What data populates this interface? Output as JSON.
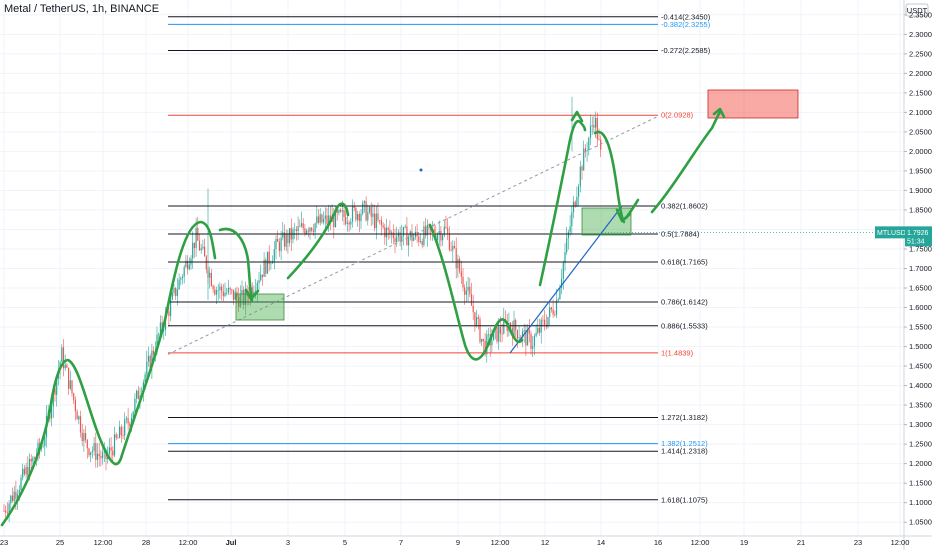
{
  "header": {
    "title": "Metal / TetherUS, 1h, BINANCE"
  },
  "axis": {
    "currency_label": "USDT"
  },
  "price_tag": {
    "symbol": "MTLUSDT",
    "price": "1.7926",
    "countdown": "51:34"
  },
  "chart_data": {
    "type": "candlestick",
    "symbol": "MTLUSDT",
    "interval": "1h",
    "exchange": "BINANCE",
    "ylim": [
      1.03,
      2.37
    ],
    "y_ticks": [
      "1.0500",
      "1.1000",
      "1.1500",
      "1.2000",
      "1.2500",
      "1.3000",
      "1.3500",
      "1.4000",
      "1.4500",
      "1.5000",
      "1.5500",
      "1.6000",
      "1.6500",
      "1.7000",
      "1.7500",
      "1.8000",
      "1.8500",
      "1.9000",
      "1.9500",
      "2.0000",
      "2.0500",
      "2.1000",
      "2.1500",
      "2.2000",
      "2.2500",
      "2.3000",
      "2.3500"
    ],
    "x_ticks": [
      "23",
      "25",
      "12:00",
      "28",
      "12:00",
      "Jul",
      "3",
      "5",
      "7",
      "9",
      "12:00",
      "12",
      "14",
      "16",
      "12:00",
      "19",
      "21",
      "23",
      "12:00"
    ],
    "fib_levels": [
      {
        "label": "-0.414(2.3450)",
        "value": 2.345,
        "color": "#131722"
      },
      {
        "label": "-0.382(2.3255)",
        "value": 2.3255,
        "color": "#2196f3"
      },
      {
        "label": "-0.272(2.2585)",
        "value": 2.2585,
        "color": "#131722"
      },
      {
        "label": "0(2.0928)",
        "value": 2.0928,
        "color": "#f44336"
      },
      {
        "label": "0.382(1.8602)",
        "value": 1.8602,
        "color": "#131722"
      },
      {
        "label": "0.5(1.7884)",
        "value": 1.7884,
        "color": "#131722"
      },
      {
        "label": "0.618(1.7165)",
        "value": 1.7165,
        "color": "#131722"
      },
      {
        "label": "0.786(1.6142)",
        "value": 1.6142,
        "color": "#131722"
      },
      {
        "label": "0.886(1.5533)",
        "value": 1.5533,
        "color": "#131722"
      },
      {
        "label": "1(1.4839)",
        "value": 1.4839,
        "color": "#f44336"
      },
      {
        "label": "1.272(1.3182)",
        "value": 1.3182,
        "color": "#131722"
      },
      {
        "label": "1.382(1.2512)",
        "value": 1.2512,
        "color": "#2196f3"
      },
      {
        "label": "1.414(1.2318)",
        "value": 1.2318,
        "color": "#131722"
      },
      {
        "label": "1.618(1.1075)",
        "value": 1.1075,
        "color": "#131722"
      }
    ],
    "price_path": [
      [
        0,
        1.08
      ],
      [
        0.08,
        1.25
      ],
      [
        0.12,
        1.48
      ],
      [
        0.17,
        1.25
      ],
      [
        0.21,
        1.21
      ],
      [
        0.26,
        1.31
      ],
      [
        0.32,
        1.52
      ],
      [
        0.4,
        1.78
      ],
      [
        0.44,
        1.65
      ],
      [
        0.5,
        1.62
      ],
      [
        0.57,
        1.76
      ],
      [
        0.63,
        1.81
      ],
      [
        0.7,
        1.83
      ],
      [
        0.75,
        1.85
      ],
      [
        0.8,
        1.79
      ],
      [
        0.86,
        1.78
      ],
      [
        0.92,
        1.8
      ],
      [
        0.97,
        1.62
      ],
      [
        1.0,
        1.5
      ],
      [
        1.05,
        1.56
      ],
      [
        1.1,
        1.51
      ],
      [
        1.15,
        1.61
      ],
      [
        1.2,
        1.95
      ],
      [
        1.23,
        2.09
      ],
      [
        1.26,
        1.86
      ],
      [
        1.3,
        1.79
      ]
    ],
    "colors": {
      "up": "#26a69a",
      "down": "#ef5350",
      "grid": "#f0f3fa",
      "drawing": "#2ea043",
      "trend": "#1e63c9"
    },
    "grid": true
  }
}
